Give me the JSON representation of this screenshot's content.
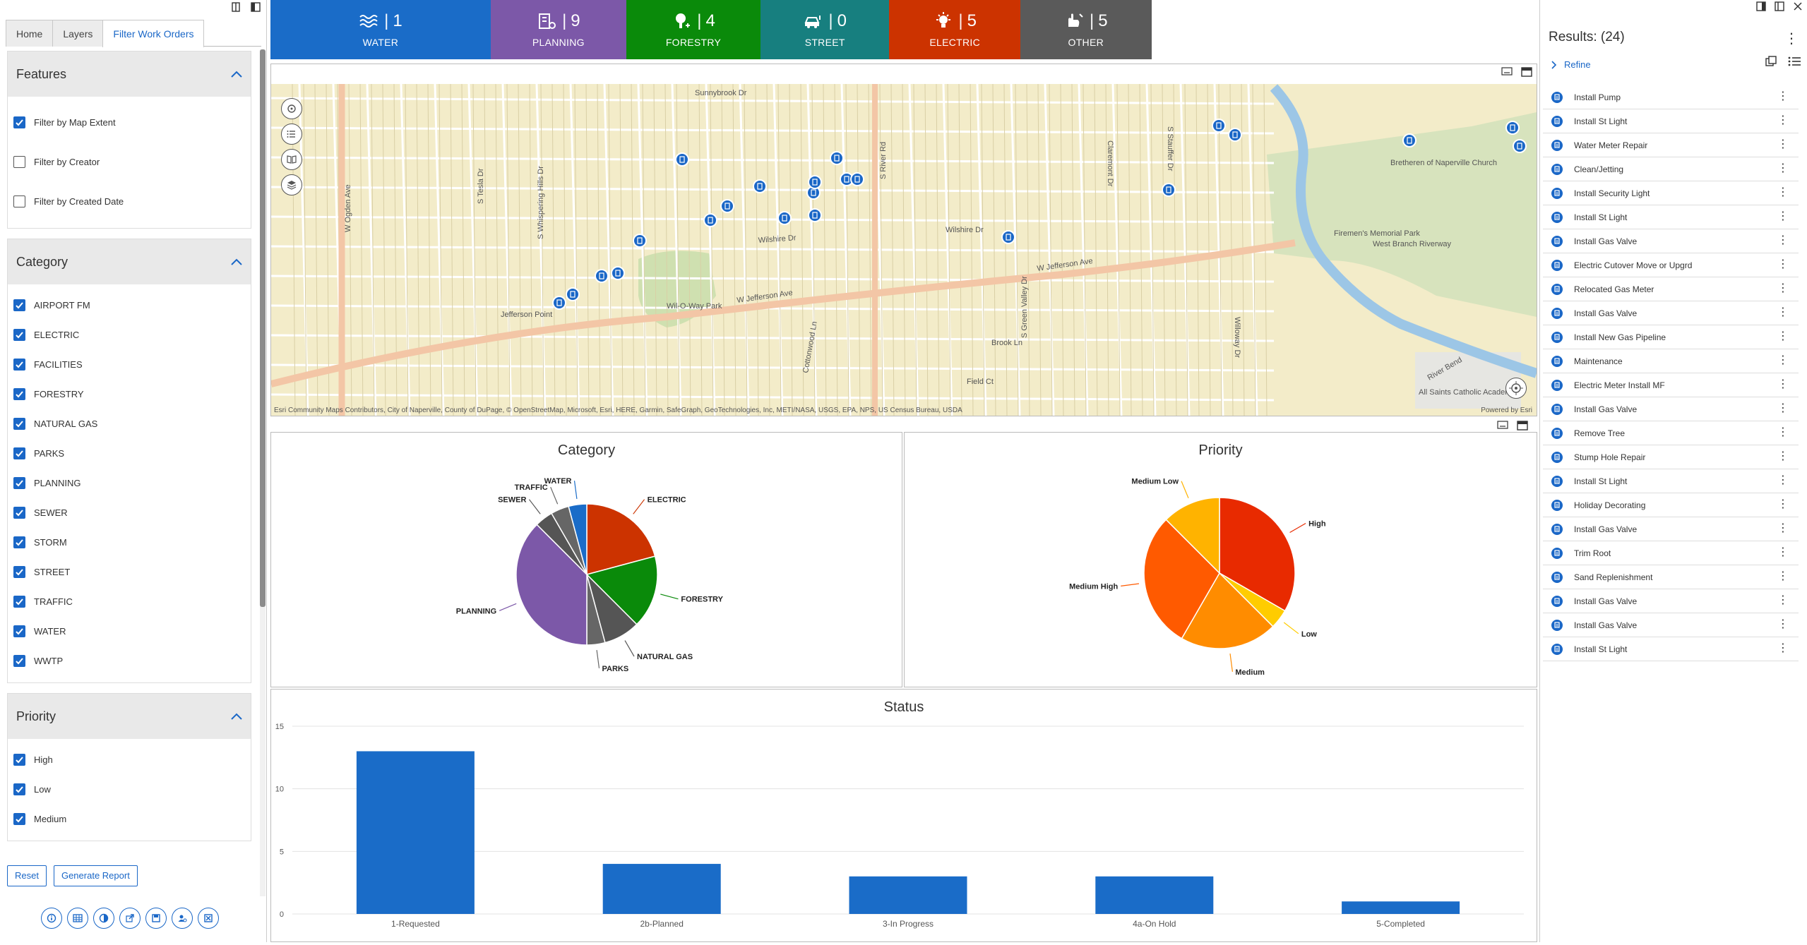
{
  "left_panel": {
    "tabs": [
      "Home",
      "Layers",
      "Filter Work Orders"
    ],
    "features": {
      "title": "Features",
      "items": [
        {
          "label": "Filter by Map Extent",
          "checked": true
        },
        {
          "label": "Filter by Creator",
          "checked": false
        },
        {
          "label": "Filter by Created Date",
          "checked": false
        }
      ]
    },
    "category": {
      "title": "Category",
      "items": [
        {
          "label": "AIRPORT FM",
          "checked": true
        },
        {
          "label": "ELECTRIC",
          "checked": true
        },
        {
          "label": "FACILITIES",
          "checked": true
        },
        {
          "label": "FORESTRY",
          "checked": true
        },
        {
          "label": "NATURAL GAS",
          "checked": true
        },
        {
          "label": "PARKS",
          "checked": true
        },
        {
          "label": "PLANNING",
          "checked": true
        },
        {
          "label": "SEWER",
          "checked": true
        },
        {
          "label": "STORM",
          "checked": true
        },
        {
          "label": "STREET",
          "checked": true
        },
        {
          "label": "TRAFFIC",
          "checked": true
        },
        {
          "label": "WATER",
          "checked": true
        },
        {
          "label": "WWTP",
          "checked": true
        }
      ]
    },
    "priority": {
      "title": "Priority",
      "items": [
        {
          "label": "High",
          "checked": true
        },
        {
          "label": "Low",
          "checked": true
        },
        {
          "label": "Medium",
          "checked": true
        }
      ]
    },
    "buttons": {
      "reset": "Reset",
      "report": "Generate Report"
    }
  },
  "tiles": [
    {
      "count": "1",
      "label": "WATER",
      "color": "#1a6cc8",
      "icon": "water-icon"
    },
    {
      "count": "9",
      "label": "PLANNING",
      "color": "#7c58a8",
      "icon": "building-icon"
    },
    {
      "count": "4",
      "label": "FORESTRY",
      "color": "#0a8a0a",
      "icon": "tree-icon"
    },
    {
      "count": "0",
      "label": "STREET",
      "color": "#177f7f",
      "icon": "car-icon"
    },
    {
      "count": "5",
      "label": "ELECTRIC",
      "color": "#cc3300",
      "icon": "lightbulb-icon"
    },
    {
      "count": "5",
      "label": "OTHER",
      "color": "#5a5a5a",
      "icon": "hand-icon"
    }
  ],
  "map": {
    "attribution": "Esri Community Maps Contributors, City of Naperville, County of DuPage, © OpenStreetMap, Microsoft, Esri, HERE, Garmin, SafeGraph, GeoTechnologies, Inc, METI/NASA, USGS, EPA, NPS, US Census Bureau, USDA",
    "powered": "Powered by Esri",
    "labels": [
      "W Jefferson Ave",
      "Wilshire Dr",
      "Sunnybrook Dr",
      "Wil-O-Way Park",
      "Jefferson Point",
      "W Ogden Ave",
      "S River Rd",
      "Brook Ln",
      "Field Ct",
      "Claremont Dr",
      "Willoway Dr",
      "S Green Valley Dr",
      "Firemen's Memorial Park",
      "West Branch Riverway",
      "Bretheren of Naperville Church",
      "All Saints Catholic Academy",
      "River Bend",
      "S Whispering Hills Dr",
      "S Stauffer Dr",
      "Cottonwood Ln",
      "S Tesla Dr"
    ]
  },
  "chart_data": [
    {
      "type": "pie",
      "title": "Category",
      "categories": [
        "ELECTRIC",
        "FORESTRY",
        "NATURAL GAS",
        "PARKS",
        "PLANNING",
        "SEWER",
        "TRAFFIC",
        "WATER"
      ],
      "values": [
        5,
        4,
        2,
        1,
        9,
        1,
        1,
        1
      ],
      "colors": [
        "#cc3300",
        "#0a8a0a",
        "#555555",
        "#666666",
        "#7c58a8",
        "#555555",
        "#666666",
        "#1a6cc8"
      ]
    },
    {
      "type": "pie",
      "title": "Priority",
      "categories": [
        "High",
        "Low",
        "Medium",
        "Medium High",
        "Medium Low"
      ],
      "values": [
        8,
        1,
        5,
        7,
        3
      ],
      "colors": [
        "#e82a00",
        "#ffcc00",
        "#ff8c00",
        "#ff5a00",
        "#ffb300"
      ]
    },
    {
      "type": "bar",
      "title": "Status",
      "categories": [
        "1-Requested",
        "2b-Planned",
        "3-In Progress",
        "4a-On Hold",
        "5-Completed"
      ],
      "values": [
        13,
        4,
        3,
        3,
        1
      ],
      "ylim": [
        0,
        15
      ],
      "yticks": [
        0,
        5,
        10,
        15
      ],
      "color": "#1a6cc8"
    }
  ],
  "results": {
    "title": "Results: (24)",
    "refine": "Refine",
    "items": [
      "Install Pump",
      "Install St Light",
      "Water Meter Repair",
      "Clean/Jetting",
      "Install Security Light",
      "Install St Light",
      "Install Gas Valve",
      "Electric Cutover Move or Upgrd",
      "Relocated Gas Meter",
      "Install Gas Valve",
      "Install New Gas Pipeline",
      "Maintenance",
      "Electric Meter Install MF",
      "Install Gas Valve",
      "Remove Tree",
      "Stump Hole Repair",
      "Install St Light",
      "Holiday Decorating",
      "Install Gas Valve",
      "Trim Root",
      "Sand Replenishment",
      "Install Gas Valve",
      "Install Gas Valve",
      "Install St Light"
    ]
  }
}
